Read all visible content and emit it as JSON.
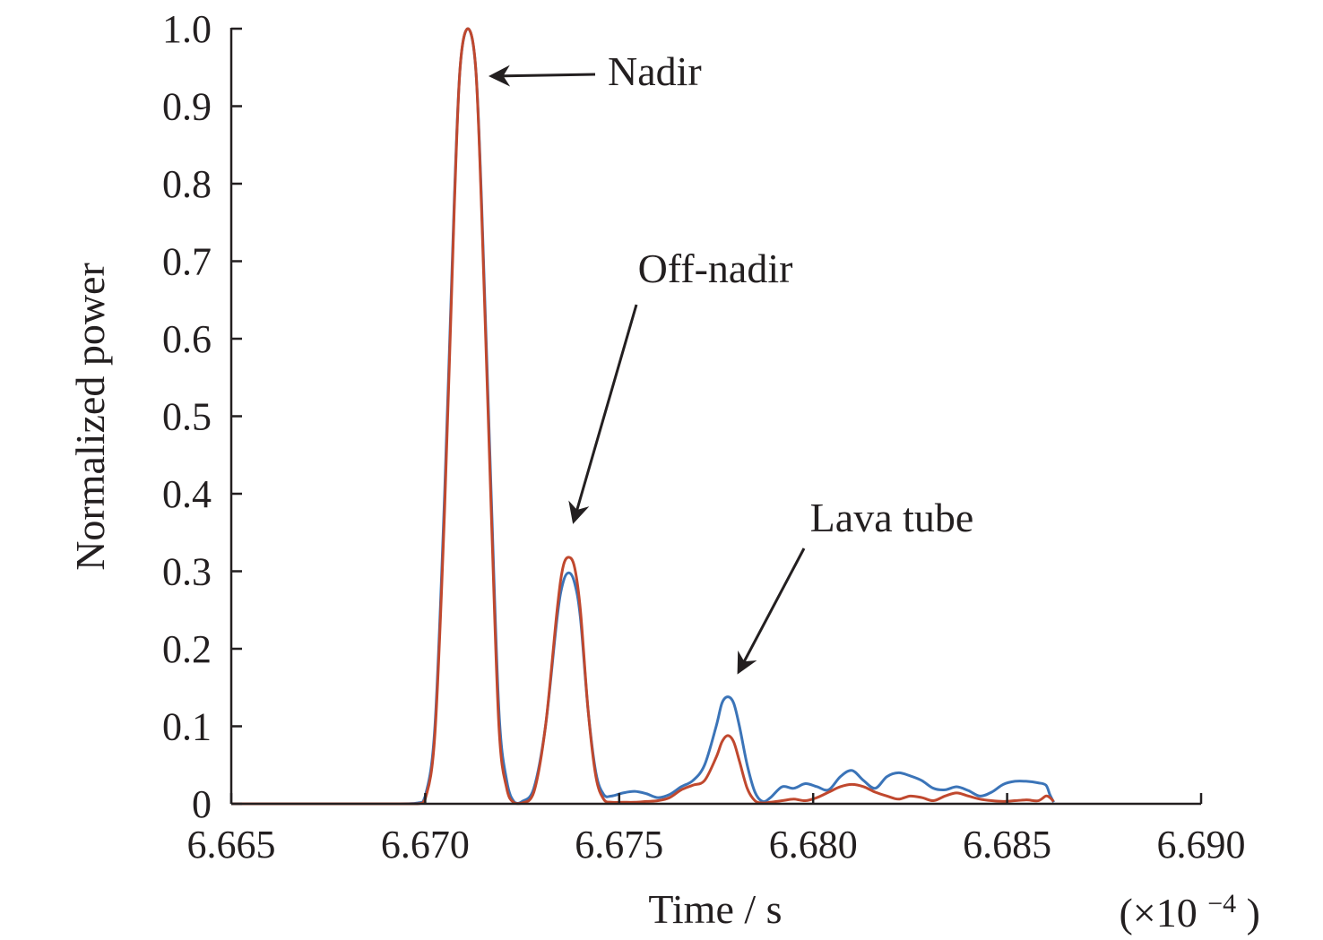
{
  "chart_data": {
    "type": "line",
    "title": "",
    "xlabel": "Time / s",
    "x_multiplier_label": {
      "prefix": "(×10",
      "exponent": "−4",
      "suffix": ")"
    },
    "ylabel": "Normalized power",
    "xlim": [
      6.665,
      6.69
    ],
    "ylim": [
      0,
      1.0
    ],
    "x_ticks": [
      6.665,
      6.67,
      6.675,
      6.68,
      6.685,
      6.69
    ],
    "x_tick_labels": [
      "6.665",
      "6.670",
      "6.675",
      "6.680",
      "6.685",
      "6.690"
    ],
    "y_ticks": [
      0,
      0.1,
      0.2,
      0.3,
      0.4,
      0.5,
      0.6,
      0.7,
      0.8,
      0.9,
      1.0
    ],
    "y_tick_labels": [
      "0",
      "0.1",
      "0.2",
      "0.3",
      "0.4",
      "0.5",
      "0.6",
      "0.7",
      "0.8",
      "0.9",
      "1.0"
    ],
    "grid": false,
    "legend": "none",
    "series": [
      {
        "color": "#3b74b8",
        "x": [
          6.665,
          6.669,
          6.6698,
          6.67,
          6.67025,
          6.6705,
          6.67075,
          6.6709,
          6.6711,
          6.6713,
          6.67145,
          6.6717,
          6.6719,
          6.6721,
          6.6723,
          6.6725,
          6.6728,
          6.6731,
          6.6734,
          6.67355,
          6.6737,
          6.67385,
          6.674,
          6.6742,
          6.6744,
          6.6746,
          6.6748,
          6.6751,
          6.6754,
          6.6757,
          6.676,
          6.6763,
          6.6766,
          6.6769,
          6.6772,
          6.6775,
          6.67765,
          6.6778,
          6.67795,
          6.6781,
          6.6783,
          6.6785,
          6.6787,
          6.6789,
          6.6792,
          6.6795,
          6.6798,
          6.6801,
          6.6804,
          6.6807,
          6.681,
          6.6813,
          6.6816,
          6.6819,
          6.6822,
          6.6825,
          6.6828,
          6.6831,
          6.6834,
          6.6837,
          6.684,
          6.6843,
          6.6846,
          6.6849,
          6.6852,
          6.6855,
          6.6858,
          6.686,
          6.6861,
          6.6862
        ],
        "y": [
          0,
          0,
          0.001,
          0.01,
          0.1,
          0.4,
          0.78,
          0.95,
          1.0,
          0.95,
          0.78,
          0.4,
          0.12,
          0.03,
          0.002,
          0.003,
          0.02,
          0.1,
          0.24,
          0.285,
          0.298,
          0.285,
          0.24,
          0.12,
          0.04,
          0.012,
          0.01,
          0.014,
          0.016,
          0.013,
          0.008,
          0.012,
          0.022,
          0.03,
          0.05,
          0.1,
          0.13,
          0.138,
          0.13,
          0.1,
          0.05,
          0.015,
          0.003,
          0.008,
          0.022,
          0.02,
          0.026,
          0.022,
          0.018,
          0.035,
          0.043,
          0.03,
          0.02,
          0.035,
          0.04,
          0.036,
          0.03,
          0.02,
          0.018,
          0.022,
          0.017,
          0.01,
          0.015,
          0.025,
          0.029,
          0.029,
          0.027,
          0.024,
          0.012,
          0.002
        ]
      },
      {
        "color": "#c0482e",
        "x": [
          6.665,
          6.669,
          6.6698,
          6.67,
          6.67025,
          6.6705,
          6.67075,
          6.6709,
          6.6711,
          6.6713,
          6.67145,
          6.6717,
          6.6719,
          6.6721,
          6.6723,
          6.6725,
          6.6728,
          6.6731,
          6.6734,
          6.67355,
          6.6737,
          6.67385,
          6.674,
          6.6742,
          6.6744,
          6.6746,
          6.6748,
          6.6751,
          6.6754,
          6.6757,
          6.676,
          6.6763,
          6.6766,
          6.6769,
          6.6772,
          6.6775,
          6.67765,
          6.6778,
          6.67795,
          6.6781,
          6.6783,
          6.6785,
          6.6787,
          6.6789,
          6.6792,
          6.6795,
          6.6798,
          6.6801,
          6.6804,
          6.6807,
          6.681,
          6.6813,
          6.6816,
          6.6819,
          6.6822,
          6.6825,
          6.6828,
          6.6831,
          6.6834,
          6.6837,
          6.684,
          6.6843,
          6.6846,
          6.6849,
          6.6852,
          6.6855,
          6.6858,
          6.686,
          6.6861,
          6.6862
        ],
        "y": [
          0,
          0,
          0.0,
          0.006,
          0.09,
          0.38,
          0.77,
          0.95,
          1.0,
          0.95,
          0.77,
          0.38,
          0.1,
          0.02,
          0.001,
          0.001,
          0.015,
          0.1,
          0.25,
          0.305,
          0.318,
          0.305,
          0.25,
          0.12,
          0.035,
          0.006,
          0.002,
          0.002,
          0.002,
          0.003,
          0.004,
          0.008,
          0.018,
          0.024,
          0.03,
          0.06,
          0.08,
          0.088,
          0.08,
          0.055,
          0.02,
          0.004,
          0.001,
          0.002,
          0.004,
          0.006,
          0.004,
          0.008,
          0.015,
          0.022,
          0.025,
          0.022,
          0.015,
          0.01,
          0.006,
          0.01,
          0.008,
          0.004,
          0.01,
          0.014,
          0.01,
          0.006,
          0.004,
          0.003,
          0.004,
          0.005,
          0.004,
          0.01,
          0.008,
          0.003
        ]
      }
    ],
    "annotations": [
      {
        "text": "Nadir",
        "arrow_to": [
          6.6712,
          0.94
        ]
      },
      {
        "text": "Off-nadir",
        "arrow_to": [
          6.6738,
          0.36
        ]
      },
      {
        "text": "Lava tube",
        "arrow_to": [
          6.6778,
          0.165
        ]
      }
    ]
  }
}
